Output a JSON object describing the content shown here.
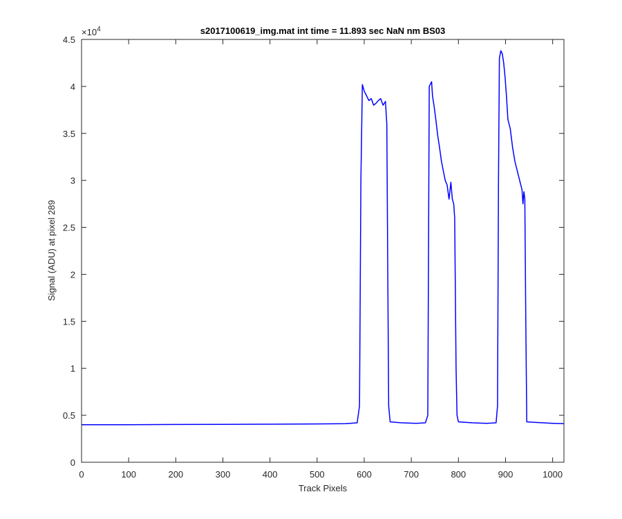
{
  "chart_data": {
    "type": "line",
    "title": "s2017100619_img.mat int time = 11.893 sec  NaN nm BS03",
    "xlabel": "Track Pixels",
    "ylabel": "Signal (ADU) at pixel 289",
    "exponent_label": "×10",
    "exponent_power": "4",
    "xlim": [
      0,
      1024
    ],
    "ylim": [
      0,
      45000
    ],
    "x_ticks": [
      0,
      100,
      200,
      300,
      400,
      500,
      600,
      700,
      800,
      900,
      1000
    ],
    "x_tick_labels": [
      "0",
      "100",
      "200",
      "300",
      "400",
      "500",
      "600",
      "700",
      "800",
      "900",
      "1000"
    ],
    "y_ticks": [
      0,
      5000,
      10000,
      15000,
      20000,
      25000,
      30000,
      35000,
      40000,
      45000
    ],
    "y_tick_labels": [
      "0",
      "0.5",
      "1",
      "1.5",
      "2",
      "2.5",
      "3",
      "3.5",
      "4",
      "4.5"
    ],
    "grid": false,
    "series": [
      {
        "color": "#0000ff",
        "x": [
          0,
          100,
          200,
          300,
          400,
          500,
          560,
          585,
          590,
          593,
          596,
          600,
          605,
          610,
          615,
          620,
          625,
          630,
          635,
          640,
          645,
          648,
          650,
          652,
          655,
          680,
          710,
          730,
          735,
          738,
          741,
          743,
          745,
          748,
          752,
          756,
          760,
          764,
          768,
          772,
          776,
          780,
          784,
          787,
          790,
          792,
          795,
          797,
          800,
          830,
          860,
          880,
          883,
          885,
          887,
          890,
          893,
          896,
          899,
          902,
          905,
          910,
          915,
          920,
          925,
          930,
          935,
          937,
          939,
          941,
          943,
          945,
          960,
          1000,
          1024
        ],
        "y": [
          4000,
          4000,
          4020,
          4030,
          4050,
          4080,
          4100,
          4200,
          6000,
          30000,
          40200,
          39500,
          39000,
          38500,
          38700,
          38000,
          38200,
          38500,
          38700,
          38000,
          38400,
          36000,
          20000,
          6000,
          4300,
          4200,
          4150,
          4200,
          5000,
          40000,
          40300,
          40500,
          39000,
          38000,
          36500,
          34800,
          33500,
          32000,
          31000,
          30000,
          29500,
          28000,
          29800,
          28000,
          27500,
          26000,
          10000,
          5000,
          4300,
          4200,
          4150,
          4200,
          6000,
          30000,
          43000,
          43800,
          43500,
          42500,
          41000,
          39000,
          36500,
          35500,
          33500,
          32000,
          31000,
          30000,
          29000,
          27500,
          28800,
          28000,
          15000,
          4300,
          4250,
          4150,
          4100
        ]
      }
    ]
  }
}
